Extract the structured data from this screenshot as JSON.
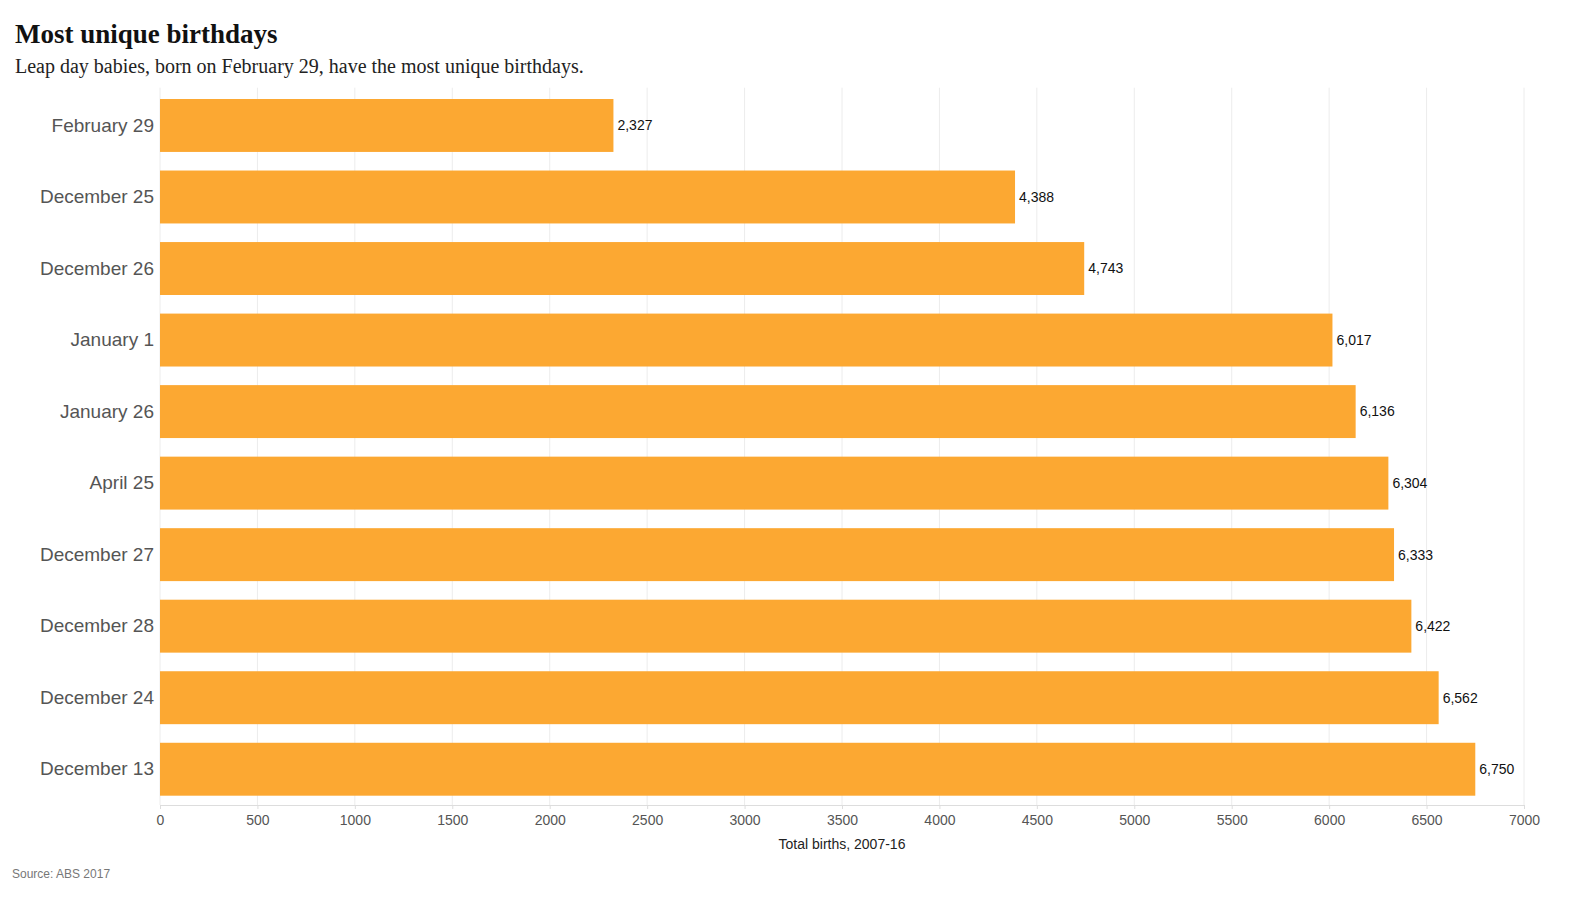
{
  "chart_data": {
    "type": "bar",
    "orientation": "horizontal",
    "title": "Most unique birthdays",
    "subtitle": "Leap day babies, born on February 29, have the most unique birthdays.",
    "x_label": "Total births, 2007-16",
    "source": "Source: ABS 2017",
    "categories": [
      "February 29",
      "December 25",
      "December 26",
      "January 1",
      "January 26",
      "April 25",
      "December 27",
      "December 28",
      "December 24",
      "December 13"
    ],
    "values": [
      2327,
      4388,
      4743,
      6017,
      6136,
      6304,
      6333,
      6422,
      6562,
      6750
    ],
    "value_labels": [
      "2,327",
      "4,388",
      "4,743",
      "6,017",
      "6,136",
      "6,304",
      "6,333",
      "6,422",
      "6,562",
      "6,750"
    ],
    "data_labels": true,
    "color": "#fca832",
    "xlim": [
      0,
      7000
    ],
    "xticks": [
      0,
      500,
      1000,
      1500,
      2000,
      2500,
      3000,
      3500,
      4000,
      4500,
      5000,
      5500,
      6000,
      6500,
      7000
    ],
    "grid": true
  }
}
